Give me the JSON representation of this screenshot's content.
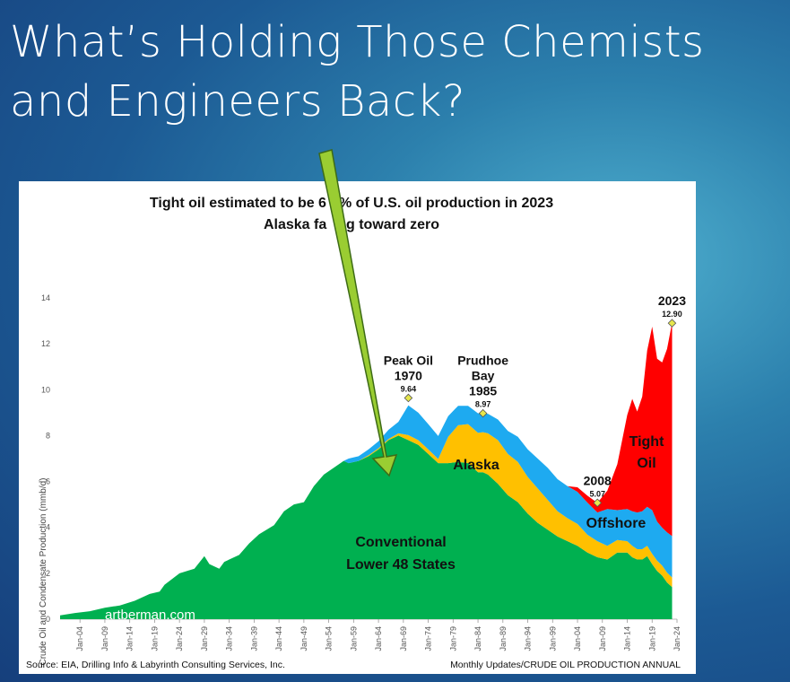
{
  "slide": {
    "title_line1": "What’s Holding Those Chemists",
    "title_line2": "and Engineers Back?",
    "accent_colors": {
      "arrow_fill": "#9acd32",
      "arrow_stroke": "#3d6b16"
    }
  },
  "chart_data": {
    "type": "area",
    "stacked": true,
    "title_line1": "Tight oil estimated to be 6",
    "title_line1b": "% of U.S. oil production in 2023",
    "title_line2": "Alaska fa",
    "title_line2b": "ng toward zero",
    "ylabel": "Crude Oil and Condensate Production (mmb/d)",
    "ylim": [
      0,
      14
    ],
    "yticks": [
      "0",
      "2",
      "4",
      "6",
      "8",
      "10",
      "12",
      "14"
    ],
    "xrange": [
      1900,
      2024
    ],
    "xticks": [
      "Jan-04",
      "Jan-09",
      "Jan-14",
      "Jan-19",
      "Jan-24",
      "Jan-29",
      "Jan-34",
      "Jan-39",
      "Jan-44",
      "Jan-49",
      "Jan-54",
      "Jan-59",
      "Jan-64",
      "Jan-69",
      "Jan-74",
      "Jan-79",
      "Jan-84",
      "Jan-89",
      "Jan-94",
      "Jan-99",
      "Jan-04",
      "Jan-09",
      "Jan-14",
      "Jan-19",
      "Jan-24"
    ],
    "xtick_years": [
      1904,
      1909,
      1914,
      1919,
      1924,
      1929,
      1934,
      1939,
      1944,
      1949,
      1954,
      1959,
      1964,
      1969,
      1974,
      1979,
      1984,
      1989,
      1994,
      1999,
      2004,
      2009,
      2014,
      2019,
      2024
    ],
    "years": [
      1900,
      1903,
      1906,
      1909,
      1912,
      1915,
      1918,
      1920,
      1921,
      1924,
      1927,
      1929,
      1930,
      1932,
      1933,
      1936,
      1938,
      1940,
      1943,
      1945,
      1947,
      1949,
      1951,
      1953,
      1955,
      1957,
      1958,
      1960,
      1962,
      1964,
      1966,
      1968,
      1970,
      1972,
      1974,
      1976,
      1978,
      1980,
      1982,
      1984,
      1985,
      1986,
      1988,
      1990,
      1992,
      1994,
      1996,
      1998,
      2000,
      2002,
      2004,
      2006,
      2008,
      2010,
      2012,
      2014,
      2015,
      2016,
      2017,
      2018,
      2019,
      2020,
      2021,
      2022,
      2023
    ],
    "series": [
      {
        "name": "Conventional Lower 48 States",
        "color": "#00b050",
        "values": [
          0.17,
          0.27,
          0.35,
          0.5,
          0.6,
          0.8,
          1.1,
          1.2,
          1.5,
          2.0,
          2.2,
          2.75,
          2.4,
          2.2,
          2.5,
          2.8,
          3.3,
          3.7,
          4.1,
          4.7,
          5.0,
          5.1,
          5.8,
          6.3,
          6.6,
          6.9,
          6.8,
          6.9,
          7.1,
          7.4,
          7.8,
          8.0,
          7.8,
          7.6,
          7.2,
          6.8,
          6.8,
          6.85,
          6.8,
          6.4,
          6.4,
          6.3,
          5.9,
          5.4,
          5.1,
          4.6,
          4.2,
          3.9,
          3.6,
          3.4,
          3.2,
          2.9,
          2.7,
          2.6,
          2.9,
          2.9,
          2.7,
          2.6,
          2.6,
          2.75,
          2.4,
          2.1,
          1.9,
          1.6,
          1.4
        ]
      },
      {
        "name": "Alaska",
        "color": "#ffc000",
        "values": [
          0,
          0,
          0,
          0,
          0,
          0,
          0,
          0,
          0,
          0,
          0,
          0,
          0,
          0,
          0,
          0,
          0,
          0,
          0,
          0,
          0,
          0,
          0,
          0,
          0,
          0,
          0,
          0,
          0.05,
          0.05,
          0.05,
          0.1,
          0.22,
          0.2,
          0.2,
          0.18,
          1.15,
          1.6,
          1.7,
          1.72,
          1.75,
          1.8,
          1.9,
          1.8,
          1.75,
          1.6,
          1.5,
          1.3,
          1.1,
          1.0,
          0.95,
          0.78,
          0.7,
          0.6,
          0.55,
          0.5,
          0.5,
          0.45,
          0.45,
          0.45,
          0.45,
          0.45,
          0.44,
          0.43,
          0.42
        ]
      },
      {
        "name": "Offshore",
        "color": "#1eaaf0",
        "values": [
          0,
          0,
          0,
          0,
          0,
          0,
          0,
          0,
          0,
          0,
          0,
          0,
          0,
          0,
          0,
          0,
          0,
          0,
          0,
          0,
          0,
          0,
          0,
          0,
          0,
          0,
          0.2,
          0.2,
          0.25,
          0.3,
          0.4,
          0.5,
          1.3,
          1.2,
          1.1,
          1.0,
          0.9,
          0.85,
          0.8,
          0.85,
          0.84,
          0.85,
          0.9,
          1.0,
          1.1,
          1.2,
          1.3,
          1.4,
          1.4,
          1.4,
          1.4,
          1.4,
          1.25,
          1.6,
          1.3,
          1.4,
          1.5,
          1.6,
          1.65,
          1.7,
          1.9,
          1.7,
          1.65,
          1.75,
          1.8
        ]
      },
      {
        "name": "Tight Oil",
        "color": "#ff0000",
        "values": [
          0,
          0,
          0,
          0,
          0,
          0,
          0,
          0,
          0,
          0,
          0,
          0,
          0,
          0,
          0,
          0,
          0,
          0,
          0,
          0,
          0,
          0,
          0,
          0,
          0,
          0,
          0,
          0,
          0,
          0,
          0,
          0,
          0,
          0,
          0,
          0,
          0,
          0,
          0,
          0,
          0,
          0,
          0,
          0,
          0,
          0,
          0,
          0,
          0,
          0,
          0.2,
          0.3,
          0.42,
          0.8,
          2.0,
          4.1,
          4.9,
          4.4,
          5.0,
          6.8,
          8.0,
          7.1,
          7.2,
          8.0,
          9.3
        ]
      }
    ],
    "annotations": [
      {
        "year": 1970,
        "value": 9.64,
        "label": "9.64",
        "text_lines": [
          "Peak Oil",
          "1970"
        ]
      },
      {
        "year": 1985,
        "value": 8.97,
        "label": "8.97",
        "text_lines": [
          "Prudhoe",
          "Bay",
          "1985"
        ]
      },
      {
        "year": 2008,
        "value": 5.07,
        "label": "5.07",
        "text_lines": [
          "2008"
        ]
      },
      {
        "year": 2023,
        "value": 12.9,
        "label": "12.90",
        "text_lines": [
          "2023"
        ]
      }
    ],
    "area_labels": {
      "conventional_line1": "Conventional",
      "conventional_line2": "Lower 48 States",
      "alaska": "Alaska",
      "offshore": "Offshore",
      "tight_line1": "Tight",
      "tight_line2": "Oil"
    },
    "watermark": "artberman.com",
    "source": "Source: EIA, Drilling Info & Labyrinth Consulting Services, Inc.",
    "note": "Monthly Updates/CRUDE OIL PRODUCTION ANNUAL",
    "marker_color": "#e6e64c"
  }
}
